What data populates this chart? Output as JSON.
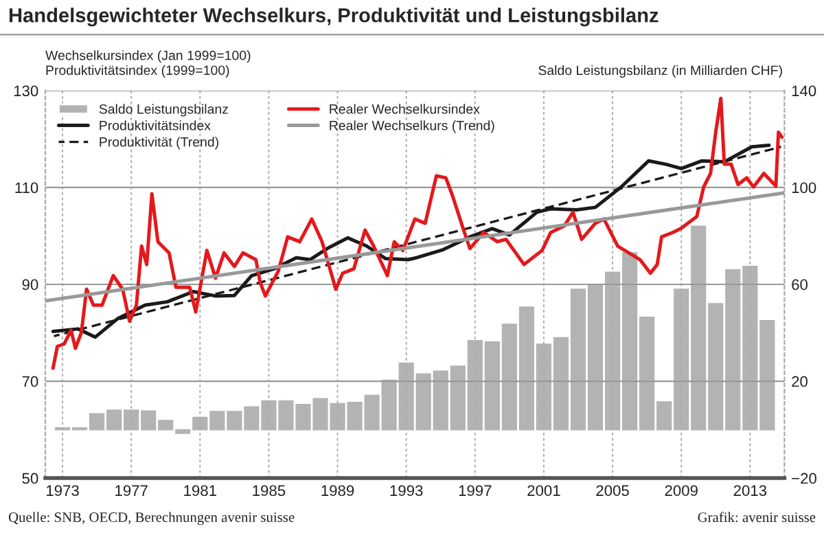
{
  "chart_data": {
    "type": "line",
    "title": "Handelsgewichteter Wechselkurs, Produktivität und Leistungsbilanz",
    "ylabel": "Wechselkursindex (Jan 1999=100)\nProduktivitätsindex (1999=100)",
    "y2label": "Saldo Leistungsbilanz (in Milliarden CHF)",
    "annotations": [
      "Quelle: SNB, OECD, Berechnungen avenir suisse",
      "Grafik: avenir suisse"
    ],
    "xlim": [
      1972,
      2015
    ],
    "xticks": [
      1973,
      1977,
      1981,
      1985,
      1989,
      1993,
      1997,
      2001,
      2005,
      2009,
      2013
    ],
    "ylim": [
      50,
      130
    ],
    "yticks": [
      50,
      70,
      90,
      110,
      130
    ],
    "y2lim": [
      -20,
      140
    ],
    "y2ticks": [
      -20,
      20,
      60,
      100,
      140
    ],
    "grid": true,
    "legend": "top left",
    "series": [
      {
        "name": "Saldo Leistungsbilanz",
        "type": "bar",
        "axis": "y2",
        "color": "#b3b3b3",
        "x": [
          1973,
          1974,
          1975,
          1976,
          1977,
          1978,
          1979,
          1980,
          1981,
          1982,
          1983,
          1984,
          1985,
          1986,
          1987,
          1988,
          1989,
          1990,
          1991,
          1992,
          1993,
          1994,
          1995,
          1996,
          1997,
          1998,
          1999,
          2000,
          2001,
          2002,
          2003,
          2004,
          2005,
          2006,
          2007,
          2008,
          2009,
          2010,
          2011,
          2012,
          2013,
          2014
        ],
        "values": [
          0.8,
          0.8,
          6.6,
          8.1,
          8.1,
          7.7,
          3.8,
          -1.5,
          5.1,
          7.5,
          7.5,
          9.4,
          11.9,
          11.9,
          10.4,
          12.8,
          10.8,
          11.3,
          14.2,
          20.4,
          27.5,
          23,
          24.2,
          26.2,
          36.8,
          36.2,
          43.5,
          50.6,
          35.3,
          38,
          58,
          60,
          65,
          73,
          46.4,
          11.5,
          58,
          84,
          52,
          66,
          67.4,
          45
        ]
      },
      {
        "name": "Produktivitätsindex",
        "color": "#1a1a1a",
        "line_style": "solid",
        "x": [
          1972.45,
          1973.9,
          1974.9,
          1976.2,
          1977.8,
          1979.1,
          1980.6,
          1981.9,
          1983.0,
          1984.0,
          1985.3,
          1986.6,
          1987.4,
          1988.4,
          1989.6,
          1990.7,
          1991.8,
          1993.1,
          1993.6,
          1995.1,
          1996.7,
          1998.0,
          1999.0,
          2000.6,
          2001.4,
          2002.9,
          2004.0,
          2005.5,
          2007.1,
          2008.1,
          2009.0,
          2010.2,
          2011.5,
          2013.1,
          2014.1
        ],
        "values": [
          80.3,
          80.8,
          79.1,
          82.9,
          85.7,
          86.4,
          88.5,
          87.6,
          87.7,
          91.8,
          93.2,
          95.5,
          95.1,
          97.4,
          99.6,
          97.9,
          95.3,
          95.1,
          95.5,
          97.1,
          99.8,
          101.5,
          100.2,
          104.9,
          105.6,
          105.4,
          105.9,
          110.1,
          115.5,
          114.8,
          113.9,
          115.5,
          115.3,
          118.4,
          118.7
        ]
      },
      {
        "name": "Produktivität (Trend)",
        "color": "#1a1a1a",
        "line_style": "dashed",
        "x": [
          1972.5,
          2014.8
        ],
        "values": [
          79.3,
          118.4
        ]
      },
      {
        "name": "Realer Wechselkursindex",
        "color": "#e3191c",
        "line_style": "solid",
        "x": [
          1972.45,
          1972.7,
          1973.1,
          1973.5,
          1973.75,
          1974.1,
          1974.4,
          1974.8,
          1975.3,
          1975.95,
          1976.5,
          1976.9,
          1977.3,
          1977.6,
          1977.9,
          1978.2,
          1978.55,
          1979.2,
          1979.6,
          1980.4,
          1980.75,
          1981.4,
          1981.9,
          1982.4,
          1983.0,
          1983.5,
          1984.25,
          1984.5,
          1984.8,
          1985.55,
          1986.1,
          1986.8,
          1987.5,
          1988.1,
          1988.9,
          1989.3,
          1989.95,
          1990.6,
          1991.1,
          1991.9,
          1992.3,
          1992.8,
          1993.5,
          1994.1,
          1994.75,
          1995.3,
          1995.7,
          1996.3,
          1996.7,
          1997.5,
          1998.3,
          1998.8,
          1999.85,
          2000.9,
          2001.4,
          2002.2,
          2002.7,
          2003.2,
          2004.0,
          2004.5,
          2005.3,
          2006.6,
          2007.2,
          2007.6,
          2007.85,
          2008.5,
          2009.0,
          2009.9,
          2010.3,
          2010.7,
          2011.0,
          2011.3,
          2011.5,
          2011.9,
          2012.3,
          2012.8,
          2013.2,
          2013.8,
          2014.5,
          2014.65,
          2014.85
        ],
        "values": [
          72.7,
          77.2,
          77.7,
          80.5,
          76.8,
          80.1,
          89.0,
          85.7,
          85.7,
          91.8,
          89.0,
          82.4,
          85.7,
          97.9,
          94.1,
          108.7,
          98.8,
          96.5,
          89.4,
          89.4,
          84.3,
          97.0,
          91.3,
          96.5,
          93.7,
          96.5,
          95.1,
          90.4,
          87.6,
          92.7,
          99.8,
          98.8,
          103.5,
          98.8,
          89.0,
          92.3,
          93.2,
          101.2,
          97.9,
          91.8,
          98.8,
          97.0,
          103.5,
          102.6,
          112.4,
          112.0,
          108.2,
          101.6,
          97.4,
          100.7,
          98.8,
          99.3,
          94.1,
          97.0,
          100.7,
          102.1,
          104.9,
          99.3,
          102.6,
          103.5,
          97.9,
          95.1,
          92.3,
          94.1,
          99.8,
          100.7,
          101.6,
          104.0,
          110.1,
          112.9,
          121.4,
          128.4,
          114.8,
          114.8,
          110.6,
          112.0,
          110.1,
          112.9,
          110.3,
          121.4,
          120.4
        ]
      },
      {
        "name": "Realer Wechselkurs (Trend)",
        "color": "#999999",
        "line_style": "solid",
        "x": [
          1972,
          2015
        ],
        "values": [
          86.6,
          108.9
        ]
      }
    ]
  }
}
